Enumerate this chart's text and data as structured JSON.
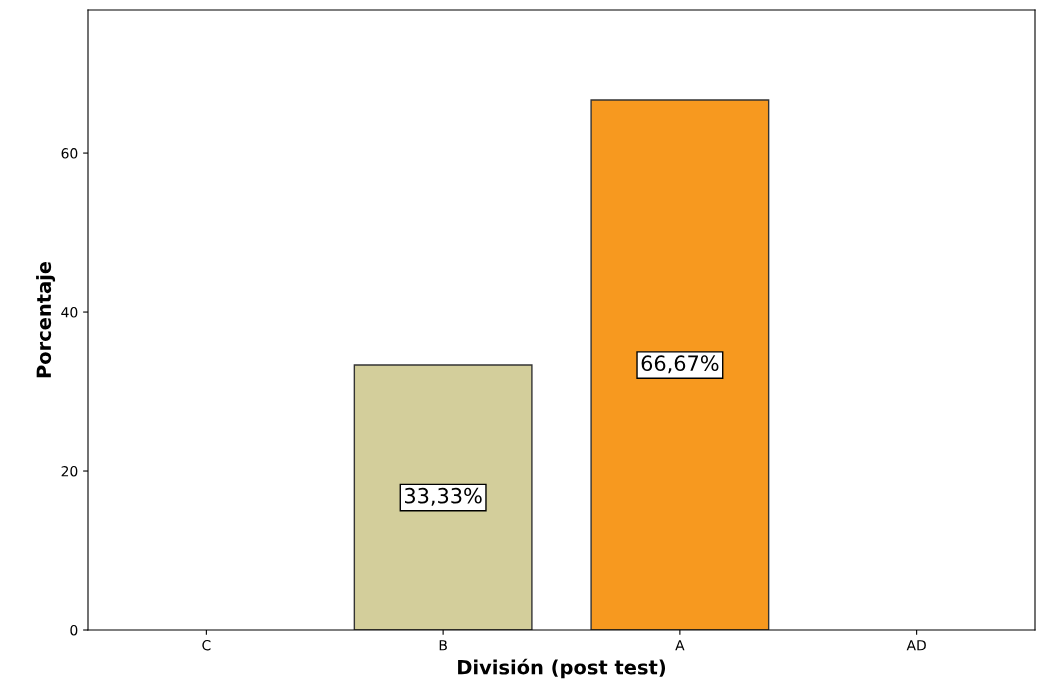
{
  "chart_data": {
    "type": "bar",
    "xlabel": "División (post test)",
    "ylabel": "Porcentaje",
    "categories": [
      "C",
      "B",
      "A",
      "AD"
    ],
    "values": [
      0,
      33.33,
      66.67,
      0
    ],
    "colors": [
      null,
      "#d3ce9b",
      "#f7991f",
      null
    ],
    "value_labels": [
      null,
      "33,33%",
      "66,67%",
      null
    ],
    "ylim": [
      0,
      78
    ],
    "yticks": [
      0,
      20,
      40,
      60
    ],
    "grid": false,
    "legend": false
  }
}
